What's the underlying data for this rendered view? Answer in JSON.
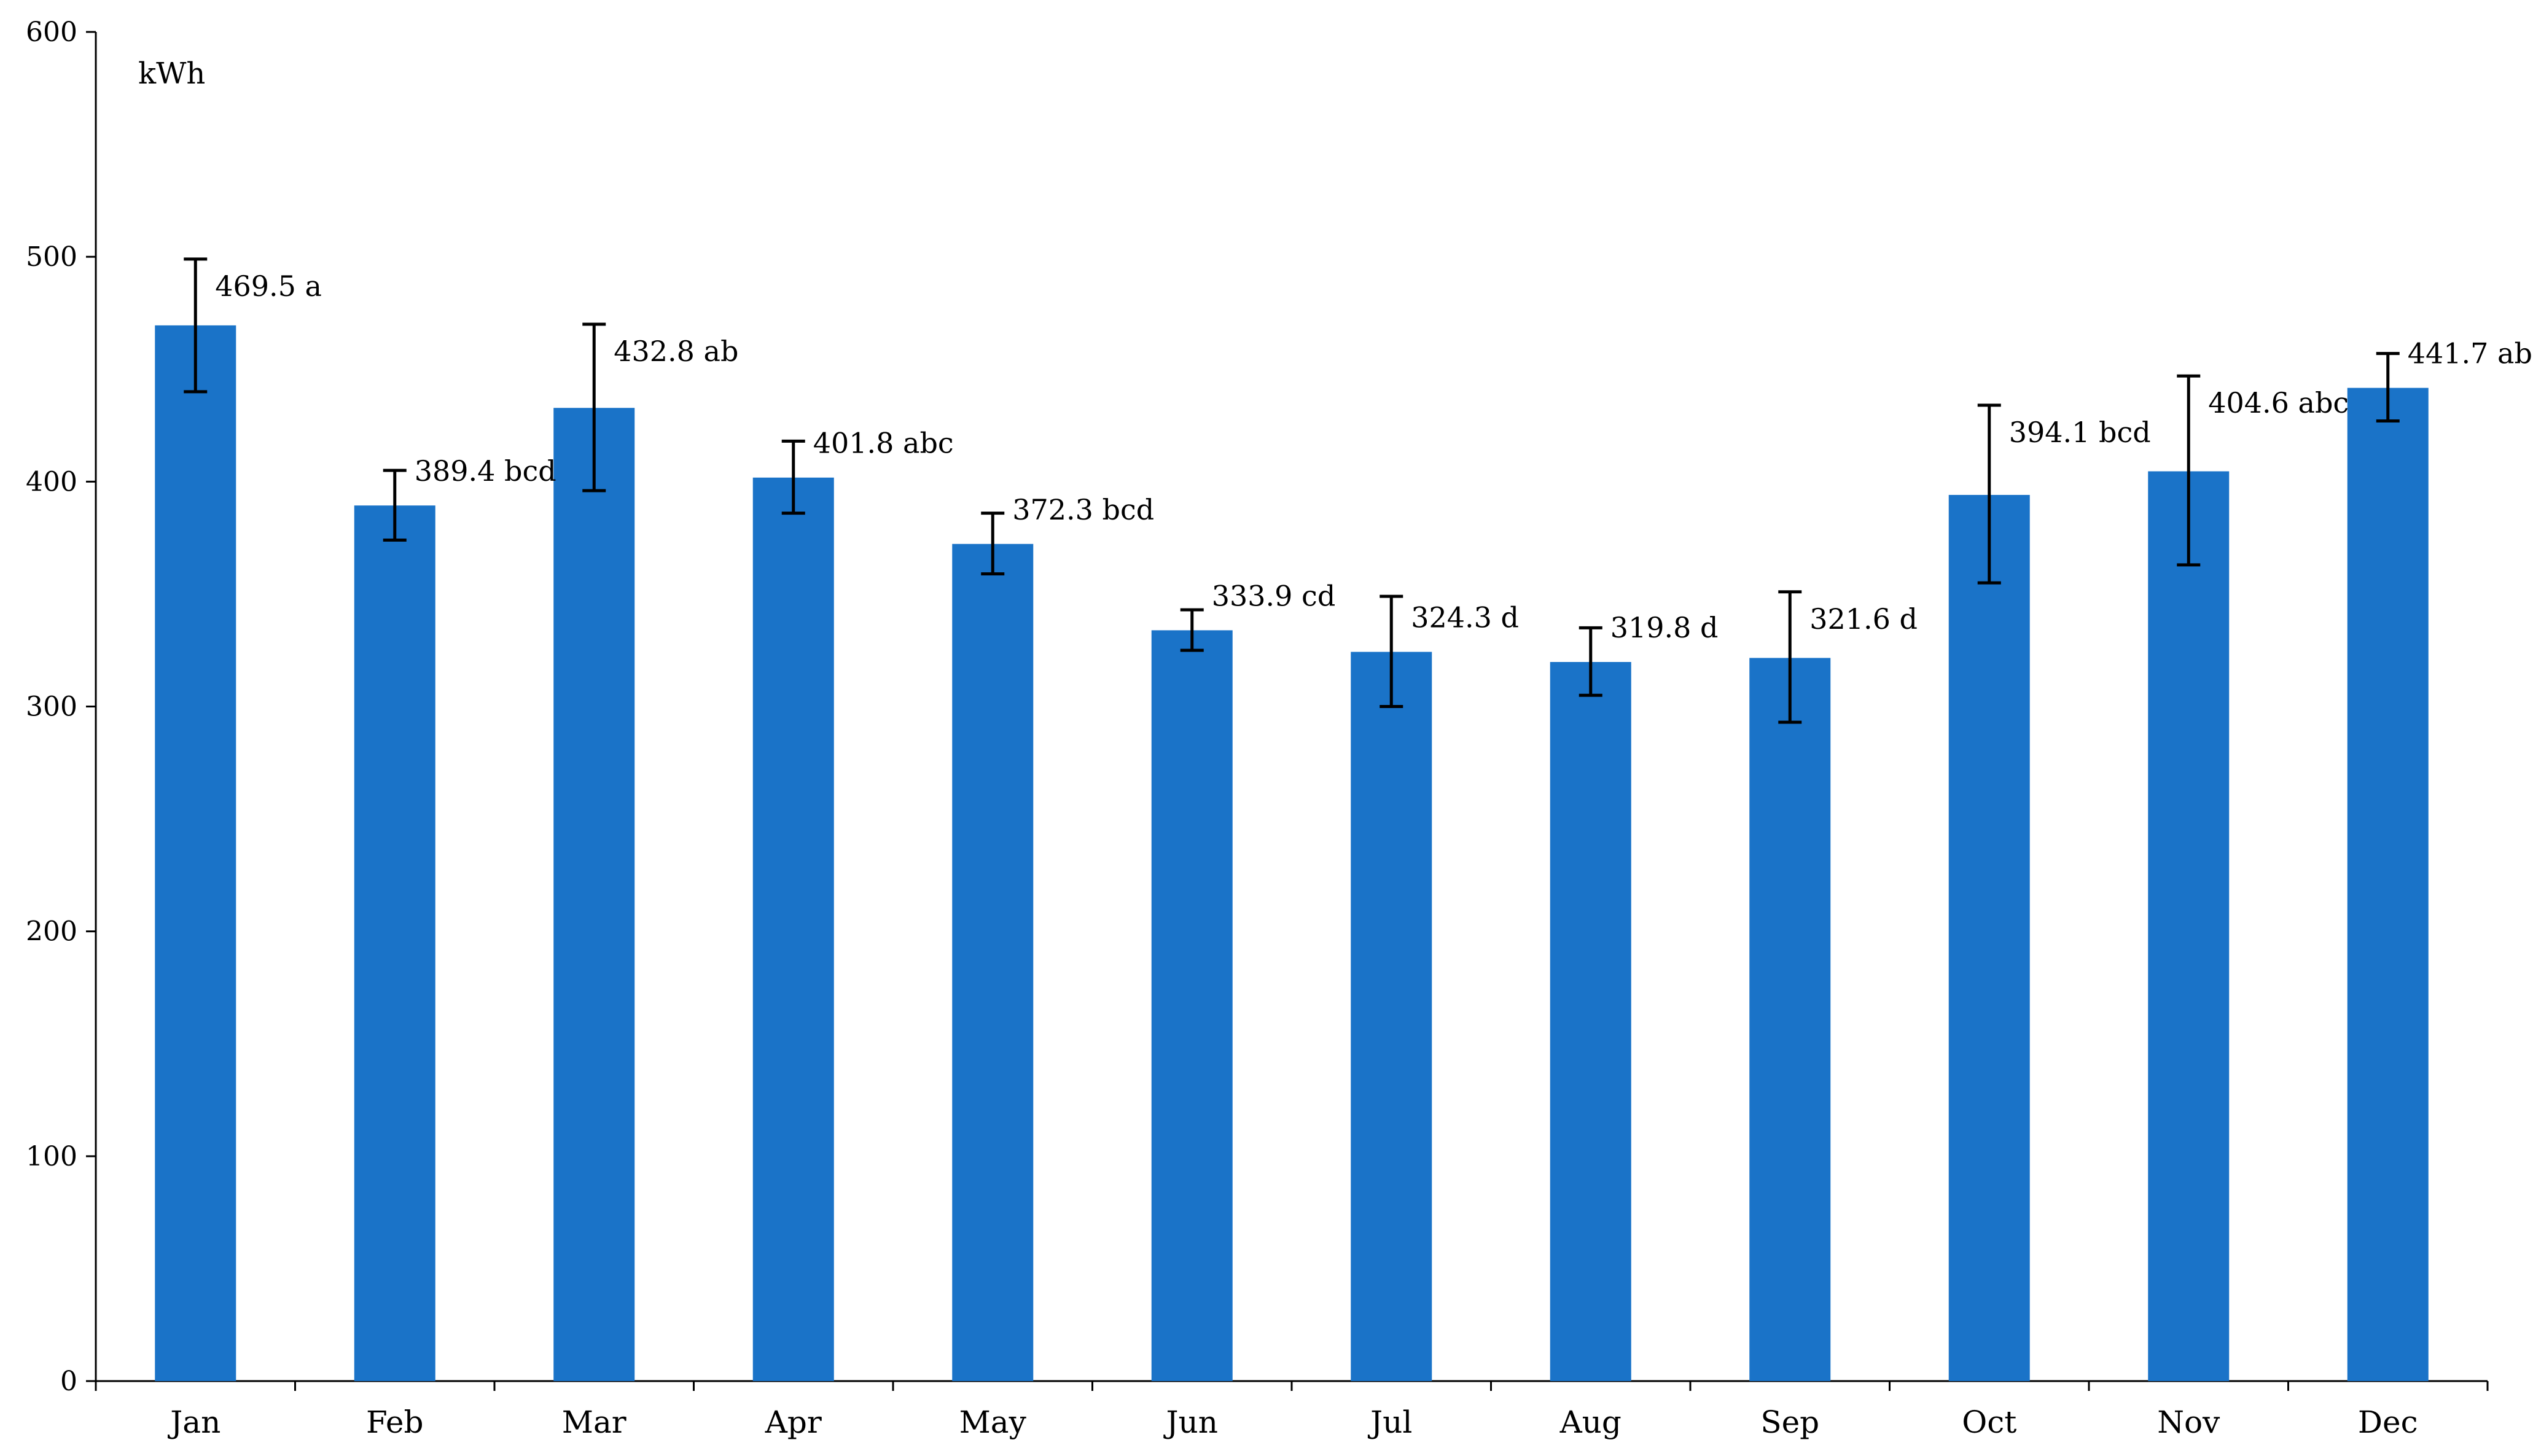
{
  "chart_data": {
    "type": "bar",
    "ylabel": "kWh",
    "ylim": [
      0,
      600
    ],
    "yticks": [
      0,
      100,
      200,
      300,
      400,
      500,
      600
    ],
    "categories": [
      "Jan",
      "Feb",
      "Mar",
      "Apr",
      "May",
      "Jun",
      "Jul",
      "Aug",
      "Sep",
      "Oct",
      "Nov",
      "Dec"
    ],
    "values": [
      469.5,
      389.4,
      432.8,
      401.8,
      372.3,
      333.9,
      324.3,
      319.8,
      321.6,
      394.1,
      404.6,
      441.7
    ],
    "error_low": [
      440,
      374,
      396,
      386,
      359,
      325,
      300,
      305,
      293,
      355,
      363,
      427
    ],
    "error_high": [
      499,
      405,
      470,
      418,
      386,
      343,
      349,
      335,
      351,
      434,
      447,
      457
    ],
    "data_labels": [
      "469.5 a",
      "389.4 bcd",
      "432.8 ab",
      "401.8 abc",
      "372.3 bcd",
      "333.9 cd",
      "324.3 d",
      "319.8 d",
      "321.6 d",
      "394.1 bcd",
      "404.6 abc",
      "441.7 ab"
    ],
    "grid": false,
    "legend": "none",
    "colors": {
      "bar": "#1a73c8",
      "axis": "#000000",
      "text": "#000000"
    }
  }
}
